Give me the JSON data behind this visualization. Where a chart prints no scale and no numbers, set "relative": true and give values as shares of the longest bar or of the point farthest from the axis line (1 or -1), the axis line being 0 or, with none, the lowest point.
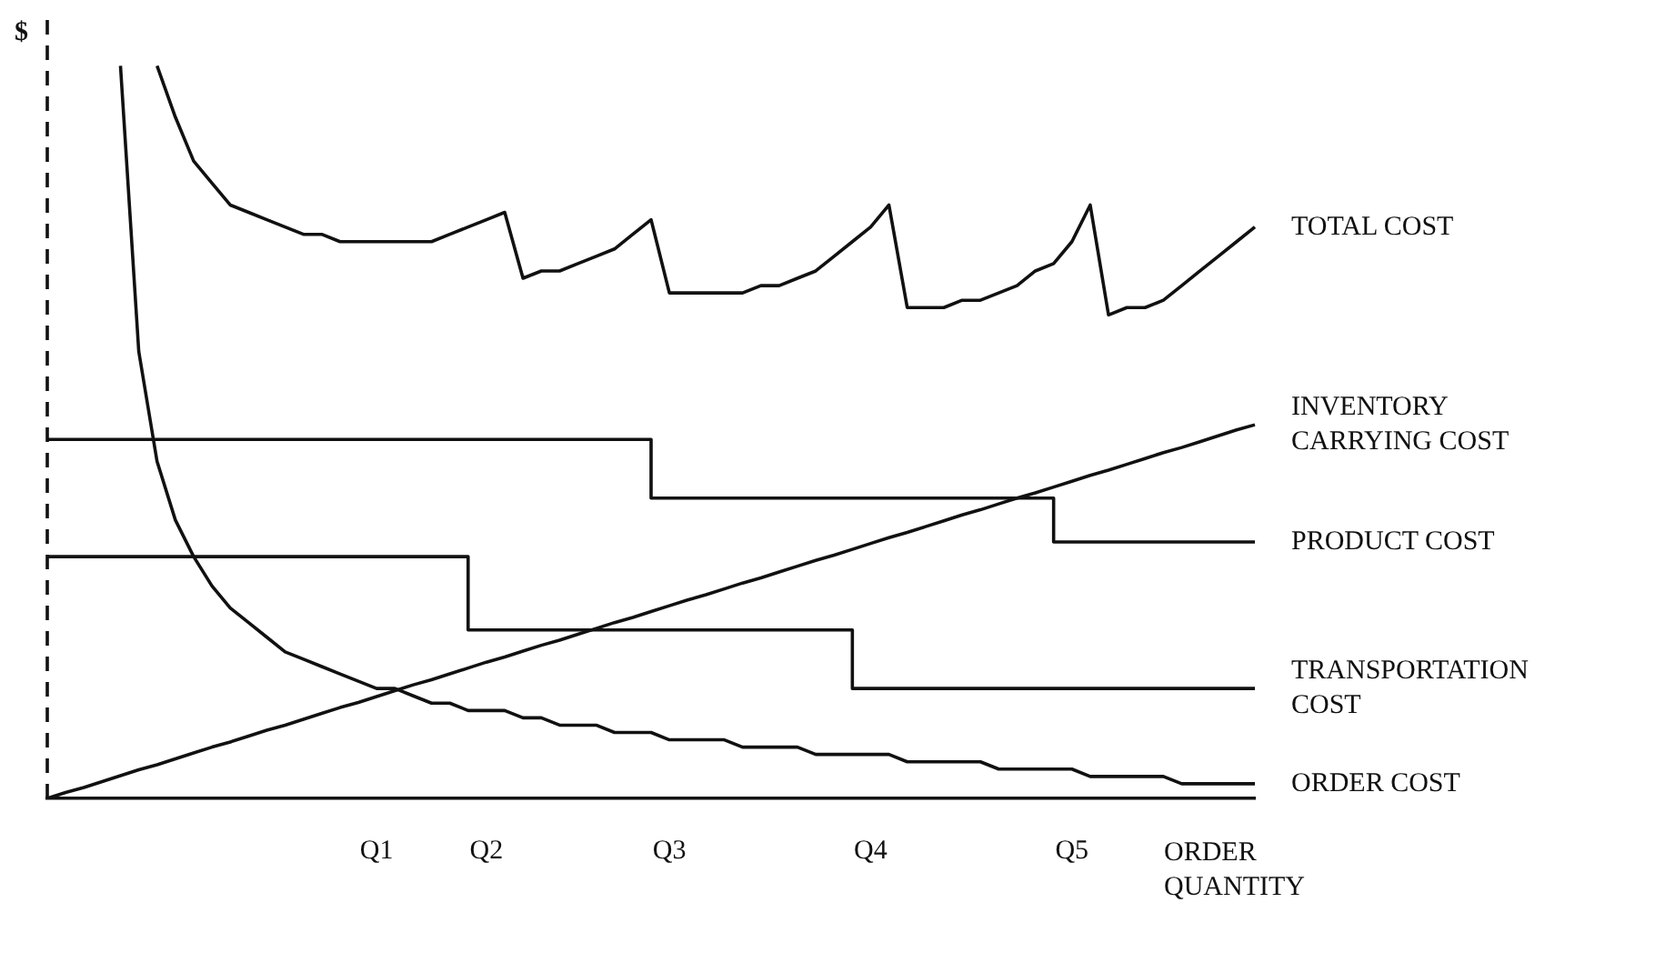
{
  "chart_data": {
    "type": "line",
    "relative": true,
    "xlabel": "ORDER QUANTITY",
    "ylabel": "$",
    "categories": [
      null,
      null,
      null,
      null,
      null,
      null,
      null,
      null,
      null,
      null,
      null,
      null,
      null,
      null,
      null,
      null,
      null,
      null,
      "Q1",
      null,
      null,
      null,
      null,
      null,
      "Q2",
      null,
      null,
      null,
      null,
      null,
      null,
      null,
      null,
      null,
      "Q3",
      null,
      null,
      null,
      null,
      null,
      null,
      null,
      null,
      null,
      null,
      "Q4",
      null,
      null,
      null,
      null,
      null,
      null,
      null,
      null,
      null,
      null,
      "Q5",
      null,
      null,
      null,
      null,
      null,
      null,
      null,
      null,
      null,
      null
    ],
    "series": [
      {
        "name": "TOTAL COST",
        "color": "#111111",
        "values": [
          null,
          null,
          null,
          null,
          null,
          null,
          1.0,
          0.93,
          0.87,
          0.84,
          0.81,
          0.8,
          0.79,
          0.78,
          0.77,
          0.77,
          0.76,
          0.76,
          0.76,
          0.76,
          0.76,
          0.76,
          0.77,
          0.78,
          0.79,
          0.8,
          0.71,
          0.72,
          0.72,
          0.73,
          0.74,
          0.75,
          0.77,
          0.79,
          0.69,
          0.69,
          0.69,
          0.69,
          0.69,
          0.7,
          0.7,
          0.71,
          0.72,
          0.74,
          0.76,
          0.78,
          0.81,
          0.67,
          0.67,
          0.67,
          0.68,
          0.68,
          0.69,
          0.7,
          0.72,
          0.73,
          0.76,
          0.81,
          0.66,
          0.67,
          0.67,
          0.68,
          0.7,
          0.72,
          0.74,
          0.76,
          0.78
        ]
      },
      {
        "name": "INVENTORY CARRYING COST",
        "color": "#111111",
        "values": [
          0,
          0.008,
          0.015,
          0.023,
          0.031,
          0.039,
          0.046,
          0.054,
          0.062,
          0.07,
          0.077,
          0.085,
          0.093,
          0.1,
          0.108,
          0.116,
          0.124,
          0.131,
          0.139,
          0.147,
          0.155,
          0.162,
          0.17,
          0.178,
          0.186,
          0.193,
          0.201,
          0.209,
          0.216,
          0.224,
          0.232,
          0.24,
          0.247,
          0.255,
          0.263,
          0.271,
          0.278,
          0.286,
          0.294,
          0.301,
          0.309,
          0.317,
          0.325,
          0.332,
          0.34,
          0.348,
          0.356,
          0.363,
          0.371,
          0.379,
          0.387,
          0.394,
          0.402,
          0.41,
          0.417,
          0.425,
          0.433,
          0.441,
          0.448,
          0.456,
          0.464,
          0.472,
          0.479,
          0.487,
          0.495,
          0.503,
          0.51
        ]
      },
      {
        "name": "PRODUCT COST",
        "color": "#111111",
        "type": "step",
        "values": [
          0.49,
          0.49,
          0.49,
          0.49,
          0.49,
          0.49,
          0.49,
          0.49,
          0.49,
          0.49,
          0.49,
          0.49,
          0.49,
          0.49,
          0.49,
          0.49,
          0.49,
          0.49,
          0.49,
          0.49,
          0.49,
          0.49,
          0.49,
          0.49,
          0.49,
          0.49,
          0.49,
          0.49,
          0.49,
          0.49,
          0.49,
          0.49,
          0.49,
          0.49,
          0.41,
          0.41,
          0.41,
          0.41,
          0.41,
          0.41,
          0.41,
          0.41,
          0.41,
          0.41,
          0.41,
          0.41,
          0.41,
          0.41,
          0.41,
          0.41,
          0.41,
          0.41,
          0.41,
          0.41,
          0.41,
          0.41,
          0.35,
          0.35,
          0.35,
          0.35,
          0.35,
          0.35,
          0.35,
          0.35,
          0.35,
          0.35,
          0.35
        ]
      },
      {
        "name": "TRANSPORTATION COST",
        "color": "#111111",
        "type": "step",
        "values": [
          0.33,
          0.33,
          0.33,
          0.33,
          0.33,
          0.33,
          0.33,
          0.33,
          0.33,
          0.33,
          0.33,
          0.33,
          0.33,
          0.33,
          0.33,
          0.33,
          0.33,
          0.33,
          0.33,
          0.33,
          0.33,
          0.33,
          0.33,
          0.33,
          0.23,
          0.23,
          0.23,
          0.23,
          0.23,
          0.23,
          0.23,
          0.23,
          0.23,
          0.23,
          0.23,
          0.23,
          0.23,
          0.23,
          0.23,
          0.23,
          0.23,
          0.23,
          0.23,
          0.23,
          0.23,
          0.15,
          0.15,
          0.15,
          0.15,
          0.15,
          0.15,
          0.15,
          0.15,
          0.15,
          0.15,
          0.15,
          0.15,
          0.15,
          0.15,
          0.15,
          0.15,
          0.15,
          0.15,
          0.15,
          0.15,
          0.15,
          0.15
        ]
      },
      {
        "name": "ORDER COST",
        "color": "#111111",
        "values": [
          null,
          null,
          null,
          null,
          1.0,
          0.61,
          0.46,
          0.38,
          0.33,
          0.29,
          0.26,
          0.24,
          0.22,
          0.2,
          0.19,
          0.18,
          0.17,
          0.16,
          0.15,
          0.15,
          0.14,
          0.13,
          0.13,
          0.12,
          0.12,
          0.12,
          0.11,
          0.11,
          0.1,
          0.1,
          0.1,
          0.09,
          0.09,
          0.09,
          0.08,
          0.08,
          0.08,
          0.08,
          0.07,
          0.07,
          0.07,
          0.07,
          0.06,
          0.06,
          0.06,
          0.06,
          0.06,
          0.05,
          0.05,
          0.05,
          0.05,
          0.05,
          0.04,
          0.04,
          0.04,
          0.04,
          0.04,
          0.03,
          0.03,
          0.03,
          0.03,
          0.03,
          0.02,
          0.02,
          0.02,
          0.02,
          0.02
        ]
      }
    ]
  }
}
